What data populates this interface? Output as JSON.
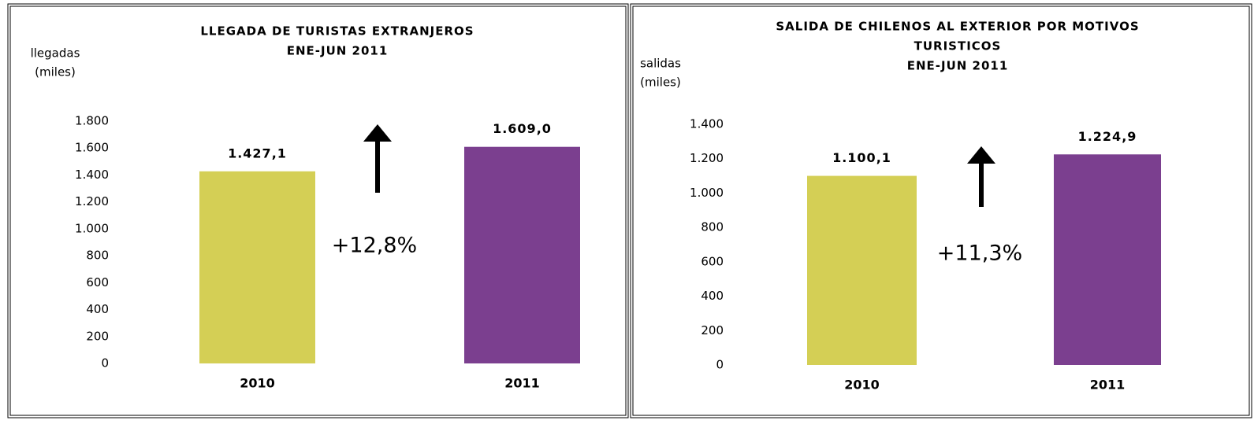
{
  "chart_data": [
    {
      "type": "bar",
      "title": [
        "LLEGADA DE TURISTAS EXTRANJEROS"
      ],
      "subtitle": "ENE-JUN 2011",
      "y_label": [
        "llegadas",
        "(miles)"
      ],
      "categories": [
        "2010",
        "2011"
      ],
      "values": [
        1427.1,
        1609.0
      ],
      "value_labels": [
        "1.427,1",
        "1.609,0"
      ],
      "colors": [
        "#d4cf55",
        "#7b3f8f"
      ],
      "ylim": [
        0,
        1800
      ],
      "yticks": [
        0,
        200,
        400,
        600,
        800,
        {
          "value": 1000,
          "label": "1.000"
        },
        {
          "value": 1200,
          "label": "1.200"
        },
        {
          "value": 1400,
          "label": "1.400"
        },
        {
          "value": 1600,
          "label": "1.600"
        },
        {
          "value": 1800,
          "label": "1.800"
        }
      ],
      "annotation": "+12,8%"
    },
    {
      "type": "bar",
      "title": [
        "SALIDA DE CHILENOS AL EXTERIOR POR MOTIVOS",
        "TURISTICOS"
      ],
      "subtitle": "ENE-JUN 2011",
      "y_label": [
        "salidas",
        "(miles)"
      ],
      "categories": [
        "2010",
        "2011"
      ],
      "values": [
        1100.1,
        1224.9
      ],
      "value_labels": [
        "1.100,1",
        "1.224,9"
      ],
      "colors": [
        "#d4cf55",
        "#7b3f8f"
      ],
      "ylim": [
        0,
        1400
      ],
      "yticks": [
        0,
        200,
        400,
        600,
        800,
        {
          "value": 1000,
          "label": "1.000"
        },
        {
          "value": 1200,
          "label": "1.200"
        },
        {
          "value": 1400,
          "label": "1.400"
        }
      ],
      "annotation": "+11,3%"
    }
  ]
}
